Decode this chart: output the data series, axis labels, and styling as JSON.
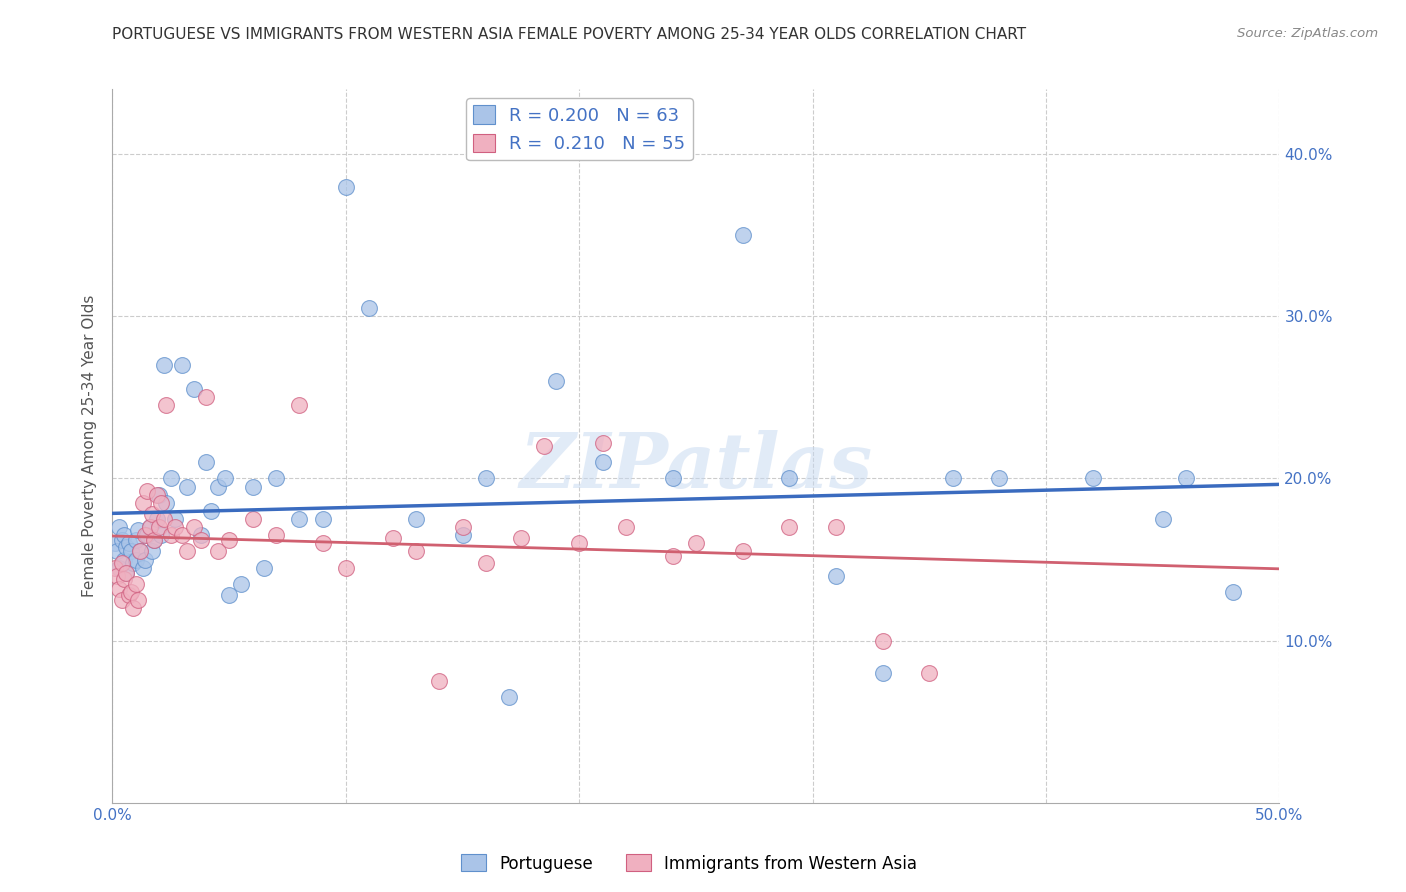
{
  "title": "PORTUGUESE VS IMMIGRANTS FROM WESTERN ASIA FEMALE POVERTY AMONG 25-34 YEAR OLDS CORRELATION CHART",
  "source": "Source: ZipAtlas.com",
  "ylabel": "Female Poverty Among 25-34 Year Olds",
  "xlim": [
    0.0,
    0.5
  ],
  "ylim": [
    0.0,
    0.44
  ],
  "xticks": [
    0.0,
    0.1,
    0.2,
    0.3,
    0.4,
    0.5
  ],
  "xticklabels": [
    "0.0%",
    "",
    "",
    "",
    "",
    "50.0%"
  ],
  "yticks": [
    0.1,
    0.2,
    0.3,
    0.4
  ],
  "yticklabels": [
    "10.0%",
    "20.0%",
    "30.0%",
    "40.0%"
  ],
  "legend1_label": "Portuguese",
  "legend2_label": "Immigrants from Western Asia",
  "series1_color": "#aac4e8",
  "series1_edge": "#6090cc",
  "series2_color": "#f0b0c0",
  "series2_edge": "#d06080",
  "line1_color": "#3a6bbf",
  "line2_color": "#d06070",
  "series1_R": 0.2,
  "series1_N": 63,
  "series2_R": 0.21,
  "series2_N": 55,
  "series1_x": [
    0.001,
    0.002,
    0.003,
    0.003,
    0.004,
    0.005,
    0.005,
    0.006,
    0.006,
    0.007,
    0.008,
    0.009,
    0.01,
    0.01,
    0.011,
    0.012,
    0.013,
    0.014,
    0.015,
    0.016,
    0.017,
    0.018,
    0.019,
    0.02,
    0.021,
    0.022,
    0.023,
    0.025,
    0.027,
    0.03,
    0.032,
    0.035,
    0.038,
    0.04,
    0.042,
    0.045,
    0.048,
    0.05,
    0.055,
    0.06,
    0.065,
    0.07,
    0.08,
    0.09,
    0.1,
    0.11,
    0.13,
    0.15,
    0.16,
    0.17,
    0.19,
    0.21,
    0.24,
    0.27,
    0.29,
    0.31,
    0.33,
    0.36,
    0.38,
    0.42,
    0.45,
    0.46,
    0.48
  ],
  "series1_y": [
    0.16,
    0.155,
    0.17,
    0.145,
    0.162,
    0.15,
    0.165,
    0.158,
    0.142,
    0.16,
    0.155,
    0.148,
    0.162,
    0.15,
    0.168,
    0.155,
    0.145,
    0.15,
    0.165,
    0.17,
    0.155,
    0.162,
    0.175,
    0.19,
    0.165,
    0.27,
    0.185,
    0.2,
    0.175,
    0.27,
    0.195,
    0.255,
    0.165,
    0.21,
    0.18,
    0.195,
    0.2,
    0.128,
    0.135,
    0.195,
    0.145,
    0.2,
    0.175,
    0.175,
    0.38,
    0.305,
    0.175,
    0.165,
    0.2,
    0.065,
    0.26,
    0.21,
    0.2,
    0.35,
    0.2,
    0.14,
    0.08,
    0.2,
    0.2,
    0.2,
    0.175,
    0.2,
    0.13
  ],
  "series2_x": [
    0.001,
    0.002,
    0.003,
    0.004,
    0.004,
    0.005,
    0.006,
    0.007,
    0.008,
    0.009,
    0.01,
    0.011,
    0.012,
    0.013,
    0.014,
    0.015,
    0.016,
    0.017,
    0.018,
    0.019,
    0.02,
    0.021,
    0.022,
    0.023,
    0.025,
    0.027,
    0.03,
    0.032,
    0.035,
    0.038,
    0.04,
    0.045,
    0.05,
    0.06,
    0.07,
    0.08,
    0.09,
    0.1,
    0.12,
    0.13,
    0.14,
    0.15,
    0.16,
    0.175,
    0.185,
    0.2,
    0.21,
    0.22,
    0.24,
    0.25,
    0.27,
    0.29,
    0.31,
    0.33,
    0.35
  ],
  "series2_y": [
    0.145,
    0.14,
    0.132,
    0.125,
    0.148,
    0.138,
    0.142,
    0.128,
    0.13,
    0.12,
    0.135,
    0.125,
    0.155,
    0.185,
    0.165,
    0.192,
    0.17,
    0.178,
    0.162,
    0.19,
    0.17,
    0.185,
    0.175,
    0.245,
    0.165,
    0.17,
    0.165,
    0.155,
    0.17,
    0.162,
    0.25,
    0.155,
    0.162,
    0.175,
    0.165,
    0.245,
    0.16,
    0.145,
    0.163,
    0.155,
    0.075,
    0.17,
    0.148,
    0.163,
    0.22,
    0.16,
    0.222,
    0.17,
    0.152,
    0.16,
    0.155,
    0.17,
    0.17,
    0.1,
    0.08
  ],
  "watermark_text": "ZIPatlas",
  "background_color": "#ffffff",
  "grid_color": "#cccccc",
  "title_color": "#333333",
  "axis_label_color": "#555555",
  "tick_label_color": "#4472c4"
}
